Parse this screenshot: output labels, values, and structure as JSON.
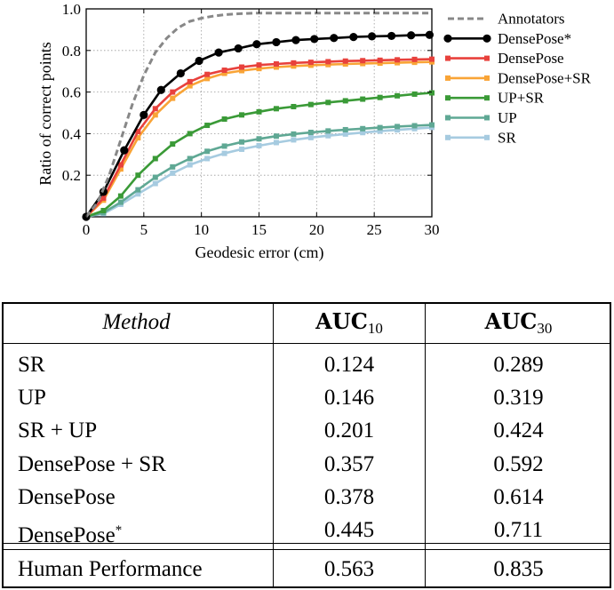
{
  "chart_data": {
    "type": "line",
    "xlabel": "Geodesic error (cm)",
    "ylabel": "Ratio of correct points",
    "xlim": [
      0,
      30
    ],
    "ylim": [
      0,
      1.0
    ],
    "xticks": [
      0,
      5,
      10,
      15,
      20,
      25,
      30
    ],
    "yticks": [
      0.2,
      0.4,
      0.6,
      0.8,
      1.0
    ],
    "ytick_labels": [
      "0.2",
      "0.4",
      "0.6",
      "0.8",
      "1.0"
    ],
    "grid": true,
    "legend_position": "right-outside",
    "series": [
      {
        "name": "Annotators",
        "color": "#888888",
        "style": "dashed",
        "marker": "none",
        "x": [
          0,
          1,
          2,
          3,
          4,
          5,
          6,
          7,
          8,
          9,
          10,
          11,
          12,
          13,
          14,
          15,
          16,
          18,
          20,
          22,
          25,
          28,
          30
        ],
        "y": [
          0,
          0.07,
          0.2,
          0.37,
          0.54,
          0.68,
          0.79,
          0.86,
          0.91,
          0.94,
          0.955,
          0.965,
          0.972,
          0.976,
          0.978,
          0.98,
          0.98,
          0.98,
          0.98,
          0.98,
          0.98,
          0.98,
          0.98
        ]
      },
      {
        "name": "DensePose*",
        "color": "#000000",
        "style": "solid",
        "marker": "circle",
        "x": [
          0,
          1.5,
          3.3,
          5,
          6.5,
          8.2,
          9.8,
          11.5,
          13.2,
          14.8,
          16.5,
          18.2,
          19.8,
          21.5,
          23.2,
          24.8,
          26.5,
          28.2,
          29.8
        ],
        "y": [
          0,
          0.12,
          0.32,
          0.49,
          0.61,
          0.69,
          0.75,
          0.79,
          0.81,
          0.83,
          0.84,
          0.85,
          0.855,
          0.86,
          0.865,
          0.868,
          0.87,
          0.873,
          0.875
        ]
      },
      {
        "name": "DensePose",
        "color": "#e8413c",
        "style": "solid",
        "marker": "square",
        "x": [
          0,
          1.5,
          3,
          4.5,
          6,
          7.5,
          9,
          10.5,
          12,
          13.5,
          15,
          16.5,
          18,
          19.5,
          21,
          22.5,
          24,
          25.5,
          27,
          28.5,
          30
        ],
        "y": [
          0,
          0.09,
          0.25,
          0.41,
          0.52,
          0.6,
          0.65,
          0.685,
          0.705,
          0.72,
          0.73,
          0.735,
          0.74,
          0.743,
          0.746,
          0.749,
          0.751,
          0.753,
          0.755,
          0.757,
          0.758
        ]
      },
      {
        "name": "DensePose+SR",
        "color": "#f9a436",
        "style": "solid",
        "marker": "square",
        "x": [
          0,
          1.5,
          3,
          4.5,
          6,
          7.5,
          9,
          10.5,
          12,
          13.5,
          15,
          16.5,
          18,
          19.5,
          21,
          22.5,
          24,
          25.5,
          27,
          28.5,
          30
        ],
        "y": [
          0,
          0.08,
          0.23,
          0.38,
          0.49,
          0.57,
          0.63,
          0.665,
          0.69,
          0.703,
          0.713,
          0.72,
          0.725,
          0.729,
          0.732,
          0.735,
          0.737,
          0.739,
          0.741,
          0.743,
          0.745
        ]
      },
      {
        "name": "UP+SR",
        "color": "#3a9a37",
        "style": "solid",
        "marker": "square",
        "x": [
          0,
          1.5,
          3,
          4.5,
          6,
          7.5,
          9,
          10.5,
          12,
          13.5,
          15,
          16.5,
          18,
          19.5,
          21,
          22.5,
          24,
          25.5,
          27,
          28.5,
          30
        ],
        "y": [
          0,
          0.03,
          0.1,
          0.2,
          0.28,
          0.35,
          0.4,
          0.44,
          0.47,
          0.49,
          0.505,
          0.52,
          0.53,
          0.54,
          0.55,
          0.558,
          0.566,
          0.574,
          0.582,
          0.59,
          0.596
        ]
      },
      {
        "name": "UP",
        "color": "#5fa894",
        "style": "solid",
        "marker": "square",
        "x": [
          0,
          1.5,
          3,
          4.5,
          6,
          7.5,
          9,
          10.5,
          12,
          13.5,
          15,
          16.5,
          18,
          19.5,
          21,
          22.5,
          24,
          25.5,
          27,
          28.5,
          30
        ],
        "y": [
          0,
          0.02,
          0.07,
          0.13,
          0.19,
          0.24,
          0.28,
          0.315,
          0.34,
          0.36,
          0.375,
          0.388,
          0.398,
          0.406,
          0.413,
          0.419,
          0.424,
          0.429,
          0.434,
          0.438,
          0.442
        ]
      },
      {
        "name": "SR",
        "color": "#a6cbe0",
        "style": "solid",
        "marker": "square",
        "x": [
          0,
          1.5,
          3,
          4.5,
          6,
          7.5,
          9,
          10.5,
          12,
          13.5,
          15,
          16.5,
          18,
          19.5,
          21,
          22.5,
          24,
          25.5,
          27,
          28.5,
          30
        ],
        "y": [
          0,
          0.015,
          0.06,
          0.11,
          0.16,
          0.21,
          0.25,
          0.28,
          0.305,
          0.325,
          0.342,
          0.357,
          0.37,
          0.381,
          0.39,
          0.398,
          0.405,
          0.412,
          0.418,
          0.424,
          0.43
        ]
      }
    ]
  },
  "table": {
    "header": {
      "method": "Method",
      "auc10_main": "AUC",
      "auc10_sub": "10",
      "auc30_main": "AUC",
      "auc30_sub": "30"
    },
    "rows": [
      {
        "method": "SR",
        "auc10": "0.124",
        "auc30": "0.289"
      },
      {
        "method": "UP",
        "auc10": "0.146",
        "auc30": "0.319"
      },
      {
        "method": "SR + UP",
        "auc10": "0.201",
        "auc30": "0.424"
      },
      {
        "method": "DensePose + SR",
        "auc10": "0.357",
        "auc30": "0.592"
      },
      {
        "method": "DensePose",
        "auc10": "0.378",
        "auc30": "0.614"
      },
      {
        "method": "DensePose",
        "method_sup": "*",
        "auc10": "0.445",
        "auc30": "0.711"
      }
    ],
    "footer": {
      "method": "Human Performance",
      "auc10": "0.563",
      "auc30": "0.835"
    }
  }
}
